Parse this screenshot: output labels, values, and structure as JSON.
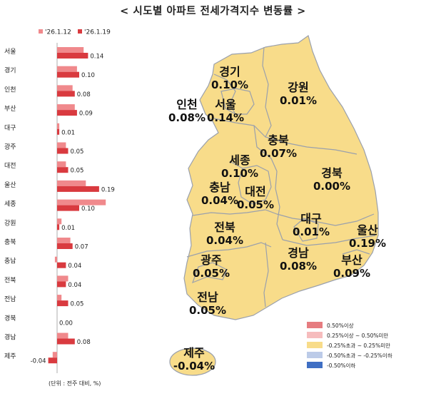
{
  "title": "< 시도별 아파트 전세가격지수 변동률 >",
  "unit_note": "(단위 : 전주 대비, %)",
  "colors": {
    "prev_week": "#f0898c",
    "this_week": "#d93a3f",
    "map_fill": "#f8dc8a",
    "map_border": "#9aa0ac"
  },
  "chart_data": {
    "type": "bar",
    "orientation": "horizontal",
    "categories": [
      "서울",
      "경기",
      "인천",
      "부산",
      "대구",
      "광주",
      "대전",
      "울산",
      "세종",
      "강원",
      "충북",
      "충남",
      "전북",
      "전남",
      "경북",
      "경남",
      "제주"
    ],
    "series": [
      {
        "name": "'26.1.12",
        "values": [
          0.12,
          0.09,
          0.07,
          0.08,
          0.01,
          0.04,
          0.04,
          0.13,
          0.22,
          0.02,
          0.06,
          -0.01,
          0.05,
          0.02,
          0.0,
          0.05,
          -0.02
        ]
      },
      {
        "name": "'26.1.19",
        "values": [
          0.14,
          0.1,
          0.08,
          0.09,
          0.01,
          0.05,
          0.05,
          0.19,
          0.1,
          0.01,
          0.07,
          0.04,
          0.04,
          0.05,
          0.0,
          0.08,
          -0.04
        ]
      }
    ],
    "value_labels": [
      "0.14",
      "0.10",
      "0.08",
      "0.09",
      "0.01",
      "0.05",
      "0.05",
      "0.19",
      "0.10",
      "0.01",
      "0.07",
      "0.04",
      "0.04",
      "0.05",
      "0.00",
      "0.08",
      "-0.04"
    ],
    "legend_position": "top",
    "grid": false
  },
  "map": {
    "regions": [
      {
        "name": "경기",
        "value": "0.10%"
      },
      {
        "name": "강원",
        "value": "0.01%"
      },
      {
        "name": "인천",
        "value": "0.08%"
      },
      {
        "name": "서울",
        "value": "0.14%"
      },
      {
        "name": "충북",
        "value": "0.07%"
      },
      {
        "name": "세종",
        "value": "0.10%"
      },
      {
        "name": "경북",
        "value": "0.00%"
      },
      {
        "name": "충남",
        "value": "0.04%"
      },
      {
        "name": "대전",
        "value": "0.05%"
      },
      {
        "name": "대구",
        "value": "0.01%"
      },
      {
        "name": "울산",
        "value": "0.19%"
      },
      {
        "name": "전북",
        "value": "0.04%"
      },
      {
        "name": "경남",
        "value": "0.08%"
      },
      {
        "name": "부산",
        "value": "0.09%"
      },
      {
        "name": "광주",
        "value": "0.05%"
      },
      {
        "name": "전남",
        "value": "0.05%"
      },
      {
        "name": "제주",
        "value": "-0.04%"
      }
    ],
    "color_key": [
      {
        "label": "0.50%이상",
        "color": "#e67c80"
      },
      {
        "label": "0.25%이상 ~ 0.50%미만",
        "color": "#f6bcbd"
      },
      {
        "label": "-0.25%초과 ~ 0.25%미만",
        "color": "#f8dc8a"
      },
      {
        "label": "-0.50%초과 ~ -0.25%이하",
        "color": "#bccbe8"
      },
      {
        "label": "-0.50%이하",
        "color": "#3f6fc4"
      }
    ]
  }
}
